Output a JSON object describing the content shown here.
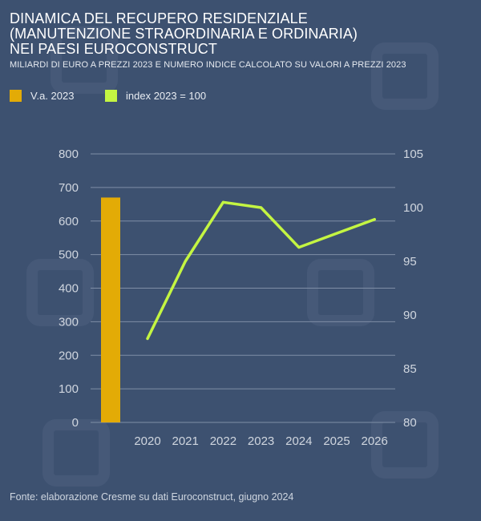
{
  "title_lines": [
    "DINAMICA DEL RECUPERO RESIDENZIALE",
    "(MANUTENZIONE STRAORDINARIA E ORDINARIA)",
    "NEI PAESI EUROCONSTRUCT"
  ],
  "subtitle": "MILIARDI DI EURO A PREZZI 2023 E NUMERO INDICE CALCOLATO SU VALORI A PREZZI 2023",
  "source": "Fonte: elaborazione Cresme su dati Euroconstruct, giugno 2024",
  "colors": {
    "background": "#3d5170",
    "bar": "#e3ab06",
    "line": "#c4f542",
    "grid": "#7f8ea6",
    "tick_text": "#d0d6df"
  },
  "chart_data": {
    "type": "bar+line",
    "legend": [
      {
        "label": "V.a. 2023",
        "color": "#e3ab06",
        "kind": "bar"
      },
      {
        "label": "index 2023 = 100",
        "color": "#c4f542",
        "kind": "line"
      }
    ],
    "legend_position": "top-left",
    "grid": true,
    "left_axis": {
      "ticks": [
        "0",
        "100",
        "200",
        "300",
        "400",
        "500",
        "600",
        "700",
        "800"
      ],
      "range": [
        0,
        800
      ]
    },
    "right_axis": {
      "ticks": [
        "80",
        "85",
        "90",
        "95",
        "100",
        "105"
      ],
      "range": [
        80,
        105
      ]
    },
    "categories": [
      "2020",
      "2021",
      "2022",
      "2023",
      "2024",
      "2025",
      "2026"
    ],
    "bar_series": {
      "name": "V.a. 2023",
      "value": 670
    },
    "line_series": {
      "name": "index 2023 = 100",
      "values": [
        87.8,
        95.0,
        100.5,
        100.0,
        96.3,
        97.6,
        98.9
      ]
    }
  }
}
